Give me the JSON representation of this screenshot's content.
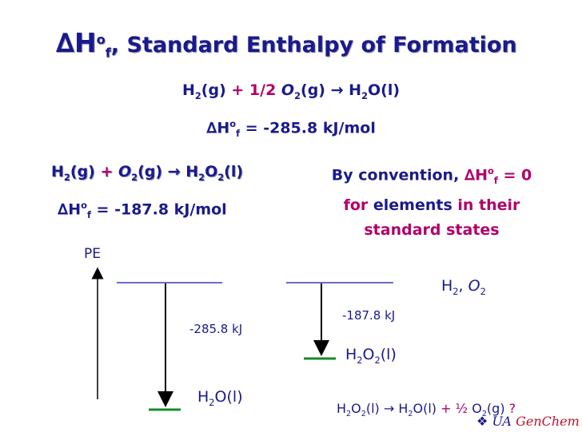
{
  "title": {
    "symbol": "∆H",
    "sup": "o",
    "sub": "f",
    "sep": ",",
    "text": "Standard Enthalpy of Formation"
  },
  "reaction_water": {
    "h2": "H",
    "h2_sub": "2",
    "h2_state": "(g)",
    "plus_coef": "+ 1/2",
    "o2": "O",
    "o2_sub": "2",
    "o2_state": "(g)",
    "arrow": "→",
    "product": "H",
    "product_sub": "2",
    "product_rest": "O(l)"
  },
  "dh_water": {
    "symbol": "∆H",
    "sup": "o",
    "sub": "f",
    "value": " = -285.8 kJ/mol"
  },
  "reaction_peroxide": {
    "h2": "H",
    "h2_sub": "2",
    "h2_state": "(g)",
    "plus": "+",
    "o2": "O",
    "o2_sub": "2",
    "o2_state": "(g)",
    "arrow": "→",
    "product": "H",
    "product_sub": "2",
    "product_mid": "O",
    "product_sub2": "2",
    "product_state": "(l)"
  },
  "dh_peroxide": {
    "symbol": "∆H",
    "sup": "o",
    "sub": "f",
    "value": " = -187.8 kJ/mol"
  },
  "convention": {
    "part1": "By convention, ",
    "symbol": "∆H",
    "sup": "o",
    "sub": "f",
    "part2": " = 0",
    "part3": "for ",
    "part4": "elements",
    "part5": " in their standard states"
  },
  "diagram": {
    "axis_label": "PE",
    "elements_label": {
      "a": "H",
      "a_sub": "2",
      "sep": ", ",
      "b": "O",
      "b_sub": "2"
    },
    "water_delta": "-285.8 kJ",
    "peroxide_delta": "-187.8 kJ",
    "peroxide_label": {
      "a": "H",
      "a_sub": "2",
      "b": "O",
      "b_sub": "2",
      "c": "(l)"
    },
    "water_label": {
      "a": "H",
      "a_sub": "2",
      "b": "O(l)"
    },
    "level_color": "#6a6acc",
    "product_level_color": "#1a8a2a",
    "arrow_color": "#000000"
  },
  "decomposition": {
    "a": "H",
    "a_sub": "2",
    "b": "O",
    "b_sub": "2",
    "c": "(l) ",
    "arrow": "→",
    "d": " H",
    "d_sub": "2",
    "e": "O(l) ",
    "plus": "+ ",
    "frac": "½",
    "f": " O",
    "f_sub": "2",
    "g": "(g) ",
    "q": "?"
  },
  "logo": {
    "ua": "UA",
    "genchem": "GenChem"
  }
}
